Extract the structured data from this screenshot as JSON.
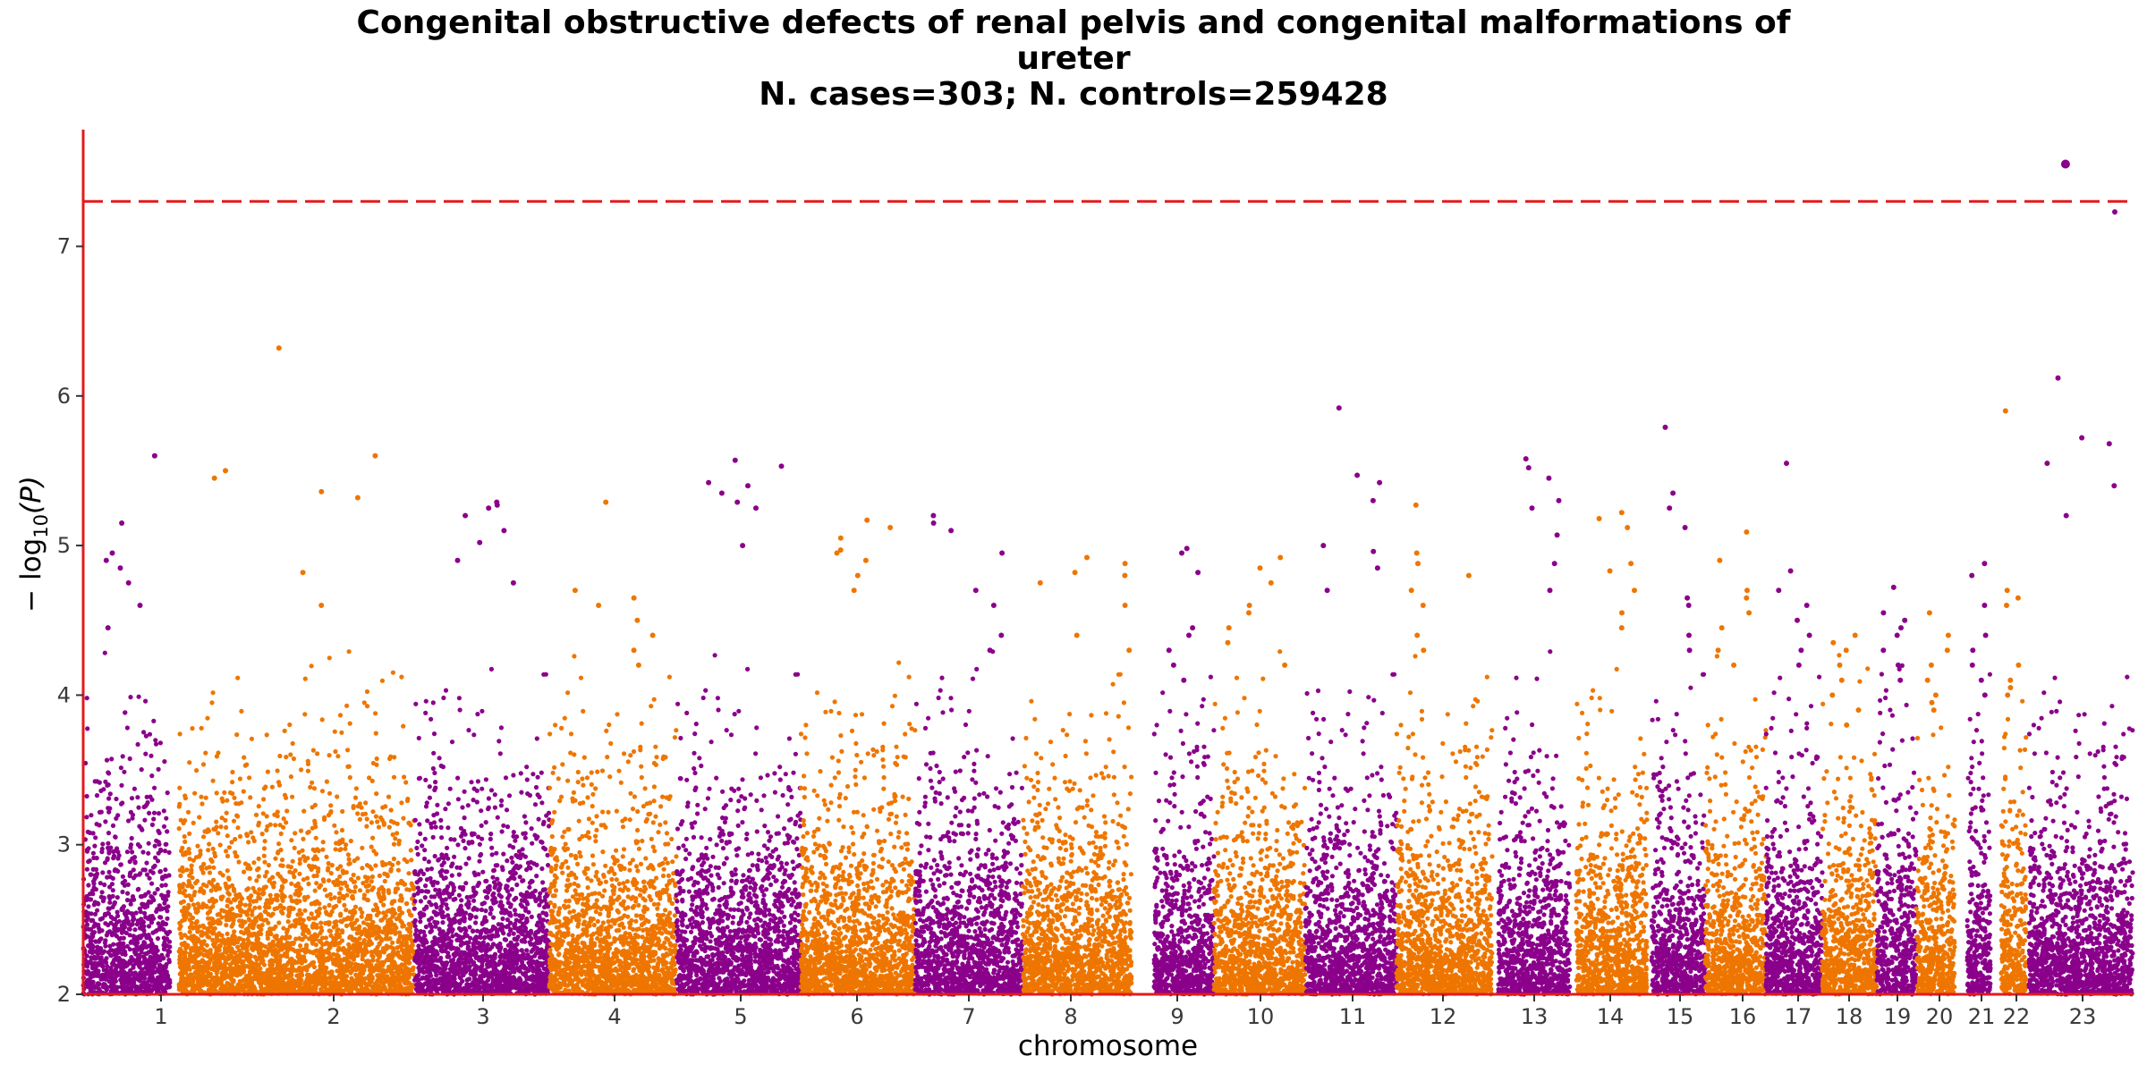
{
  "chart_data": {
    "type": "scatter",
    "title_lines": [
      "Congenital obstructive defects of renal pelvis and congenital malformations of",
      "ureter",
      "N. cases=303; N. controls=259428"
    ],
    "xlabel": "chromosome",
    "ylabel": "−log10(P)",
    "ylabel_main": "− log",
    "ylabel_sub": "10",
    "ylabel_arg": "(P)",
    "ylim": [
      2,
      7.78
    ],
    "yticks": [
      2,
      3,
      4,
      5,
      6,
      7
    ],
    "grid": false,
    "legend": "none",
    "significance_threshold": 7.3,
    "colors": {
      "odd": "#8b008b",
      "even": "#ee7600",
      "threshold": "#e31a1c",
      "axis": "#e31a1c"
    },
    "chromosomes": [
      {
        "label": "1",
        "top": [
          5.6,
          5.15,
          4.95,
          4.9,
          4.85,
          4.75,
          4.6,
          4.45
        ]
      },
      {
        "label": "2",
        "top": [
          6.32,
          5.6,
          5.5,
          5.45,
          5.36,
          5.32,
          4.82,
          4.6
        ]
      },
      {
        "label": "3",
        "top": [
          5.29,
          5.27,
          5.25,
          5.2,
          5.1,
          5.02,
          4.9,
          4.75
        ]
      },
      {
        "label": "4",
        "top": [
          5.29,
          4.7,
          4.65,
          4.6,
          4.5,
          4.4,
          4.3,
          4.2
        ]
      },
      {
        "label": "5",
        "top": [
          5.57,
          5.53,
          5.42,
          5.4,
          5.35,
          5.29,
          5.25,
          5.0
        ]
      },
      {
        "label": "6",
        "top": [
          5.17,
          5.12,
          5.05,
          4.97,
          4.95,
          4.9,
          4.8,
          4.7
        ]
      },
      {
        "label": "7",
        "top": [
          5.2,
          5.15,
          5.1,
          4.95,
          4.7,
          4.6,
          4.4,
          4.3
        ]
      },
      {
        "label": "8",
        "top": [
          4.92,
          4.88,
          4.82,
          4.8,
          4.75,
          4.6,
          4.4,
          4.3
        ]
      },
      {
        "label": "9",
        "top": [
          4.98,
          4.95,
          4.82,
          4.45,
          4.4,
          4.3,
          4.2,
          4.1
        ]
      },
      {
        "label": "10",
        "top": [
          4.92,
          4.85,
          4.75,
          4.6,
          4.55,
          4.45,
          4.35,
          4.2
        ]
      },
      {
        "label": "11",
        "top": [
          5.92,
          5.47,
          5.42,
          5.3,
          5.0,
          4.96,
          4.85,
          4.7
        ]
      },
      {
        "label": "12",
        "top": [
          5.27,
          4.95,
          4.88,
          4.8,
          4.7,
          4.6,
          4.4,
          4.3
        ]
      },
      {
        "label": "13",
        "top": [
          5.58,
          5.52,
          5.45,
          5.3,
          5.25,
          5.07,
          4.88,
          4.7
        ]
      },
      {
        "label": "14",
        "top": [
          5.22,
          5.18,
          5.12,
          4.88,
          4.83,
          4.7,
          4.55,
          4.45
        ]
      },
      {
        "label": "15",
        "top": [
          5.79,
          5.35,
          5.25,
          5.12,
          4.65,
          4.6,
          4.4,
          4.3
        ]
      },
      {
        "label": "16",
        "top": [
          5.09,
          4.9,
          4.7,
          4.65,
          4.55,
          4.45,
          4.3,
          4.2
        ]
      },
      {
        "label": "17",
        "top": [
          5.55,
          4.83,
          4.7,
          4.6,
          4.5,
          4.4,
          4.3,
          4.2
        ]
      },
      {
        "label": "18",
        "top": [
          4.4,
          4.35,
          4.3,
          4.2,
          4.1,
          4.0,
          3.9,
          3.8
        ]
      },
      {
        "label": "19",
        "top": [
          4.72,
          4.55,
          4.5,
          4.45,
          4.4,
          4.3,
          4.2,
          4.1
        ]
      },
      {
        "label": "20",
        "top": [
          4.55,
          4.4,
          4.3,
          4.2,
          4.1,
          4.0,
          3.95,
          3.9
        ]
      },
      {
        "label": "21",
        "top": [
          4.88,
          4.8,
          4.6,
          4.4,
          4.3,
          4.2,
          4.1,
          4.0
        ]
      },
      {
        "label": "22",
        "top": [
          5.9,
          4.7,
          4.65,
          4.6,
          4.2,
          4.1,
          4.05,
          4.0
        ]
      },
      {
        "label": "23",
        "top": [
          7.55,
          7.23,
          6.12,
          5.72,
          5.68,
          5.55,
          5.4,
          5.2
        ]
      }
    ]
  }
}
